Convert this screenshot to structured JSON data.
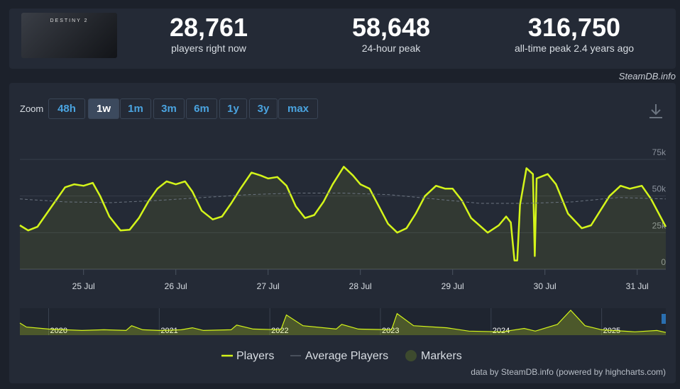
{
  "header": {
    "logo": "DESTINY 2",
    "stats": [
      {
        "value": "28,761",
        "label": "players right now"
      },
      {
        "value": "58,648",
        "label": "24-hour peak"
      },
      {
        "value": "316,750",
        "label": "all-time peak 2.4 years ago"
      }
    ],
    "source": "SteamDB.info"
  },
  "zoom": {
    "label": "Zoom",
    "options": [
      "48h",
      "1w",
      "1m",
      "3m",
      "6m",
      "1y",
      "3y",
      "max"
    ],
    "active": 1
  },
  "chart_data": {
    "type": "line",
    "xlim": [
      24.31,
      31.31
    ],
    "xticks": [
      {
        "value": 25,
        "label": "25 Jul"
      },
      {
        "value": 26,
        "label": "26 Jul"
      },
      {
        "value": 27,
        "label": "27 Jul"
      },
      {
        "value": 28,
        "label": "28 Jul"
      },
      {
        "value": 29,
        "label": "29 Jul"
      },
      {
        "value": 30,
        "label": "30 Jul"
      },
      {
        "value": 31,
        "label": "31 Jul"
      }
    ],
    "ylim": [
      0,
      90000
    ],
    "yticks": [
      0,
      {
        "value": 25000,
        "label": "25k"
      },
      {
        "value": 50000,
        "label": "50k"
      },
      {
        "value": 75000,
        "label": "75k"
      }
    ],
    "grid": true,
    "series": [
      {
        "name": "Players",
        "color": "#d4f51a",
        "x": [
          24.31,
          24.4,
          24.5,
          24.6,
          24.7,
          24.8,
          24.9,
          25.0,
          25.1,
          25.18,
          25.28,
          25.4,
          25.5,
          25.6,
          25.7,
          25.8,
          25.9,
          26.0,
          26.1,
          26.18,
          26.28,
          26.4,
          26.5,
          26.6,
          26.7,
          26.82,
          26.92,
          27.0,
          27.1,
          27.2,
          27.3,
          27.4,
          27.5,
          27.6,
          27.7,
          27.82,
          27.92,
          28.0,
          28.1,
          28.2,
          28.3,
          28.4,
          28.5,
          28.6,
          28.7,
          28.82,
          28.92,
          29.0,
          29.1,
          29.2,
          29.38,
          29.5,
          29.58,
          29.63,
          29.67,
          29.7,
          29.73,
          29.8,
          29.87,
          29.89,
          29.91,
          30.03,
          30.12,
          30.25,
          30.4,
          30.5,
          30.6,
          30.7,
          30.82,
          30.92,
          31.05,
          31.15,
          31.31
        ],
        "values": [
          30000,
          26500,
          29000,
          38000,
          47000,
          56000,
          58000,
          57000,
          59000,
          50000,
          36000,
          26500,
          27000,
          35000,
          46000,
          55000,
          60000,
          58000,
          60000,
          53000,
          40000,
          34000,
          36000,
          45000,
          55000,
          66000,
          64000,
          62000,
          63000,
          57000,
          43000,
          35000,
          37000,
          46000,
          58000,
          70000,
          64000,
          58000,
          55000,
          43000,
          31000,
          25000,
          28000,
          38000,
          50000,
          57000,
          55000,
          55000,
          47000,
          35000,
          25000,
          30000,
          36000,
          32000,
          6000,
          6000,
          44000,
          69000,
          65000,
          9000,
          62000,
          65000,
          58000,
          38000,
          28000,
          30000,
          40000,
          50000,
          57000,
          55000,
          57000,
          48000,
          29000
        ]
      },
      {
        "name": "Average Players",
        "color": "#6b7480",
        "x": [
          24.31,
          24.8,
          25.3,
          25.8,
          26.3,
          26.8,
          27.3,
          27.8,
          28.3,
          28.8,
          29.3,
          29.8,
          30.3,
          30.8,
          31.31
        ],
        "values": [
          48000,
          46000,
          45500,
          47000,
          49000,
          51000,
          52000,
          52000,
          51000,
          48000,
          45000,
          45000,
          46000,
          49000,
          48000
        ]
      }
    ],
    "markers": {
      "name": "Markers",
      "color": "#3d4a2e"
    },
    "navigator": {
      "xlim": [
        2019.74,
        2025.58
      ],
      "ylim": [
        0,
        200000
      ],
      "xticks": [
        2020,
        2021,
        2022,
        2023,
        2024,
        2025
      ],
      "x": [
        2019.74,
        2019.8,
        2020.0,
        2020.3,
        2020.5,
        2020.7,
        2020.75,
        2020.85,
        2021.0,
        2021.2,
        2021.3,
        2021.4,
        2021.65,
        2021.7,
        2021.85,
        2022.1,
        2022.15,
        2022.3,
        2022.6,
        2022.65,
        2022.8,
        2023.1,
        2023.15,
        2023.3,
        2023.6,
        2023.8,
        2024.1,
        2024.3,
        2024.4,
        2024.6,
        2024.72,
        2024.85,
        2025.0,
        2025.3,
        2025.5,
        2025.58
      ],
      "values": [
        90000,
        60000,
        45000,
        35000,
        40000,
        35000,
        70000,
        40000,
        35000,
        40000,
        55000,
        35000,
        40000,
        75000,
        45000,
        40000,
        150000,
        70000,
        45000,
        80000,
        45000,
        40000,
        160000,
        70000,
        55000,
        30000,
        25000,
        50000,
        30000,
        80000,
        185000,
        70000,
        40000,
        25000,
        35000,
        20000
      ]
    },
    "credit": "data by SteamDB.info (powered by highcharts.com)"
  }
}
